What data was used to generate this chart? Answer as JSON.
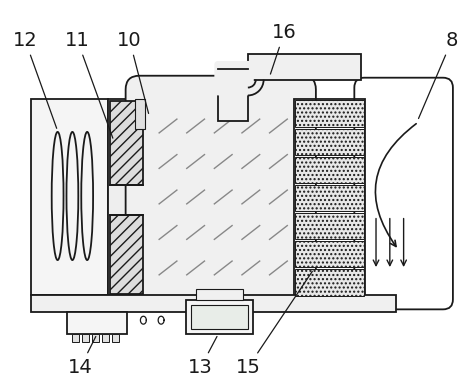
{
  "bg_color": "#ffffff",
  "line_color": "#1a1a1a",
  "figsize": [
    4.77,
    3.91
  ],
  "dpi": 100,
  "label_fontsize": 14
}
